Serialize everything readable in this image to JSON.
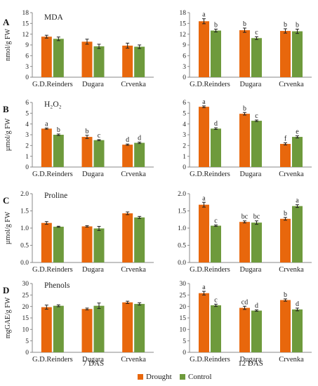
{
  "colors": {
    "drought": "#e8670c",
    "control": "#6e9a3c",
    "error": "#222222",
    "axis": "#8a8a8a"
  },
  "x_titles": [
    "7 DAS",
    "12 DAS"
  ],
  "legend": [
    {
      "label": "Drought",
      "color": "#e8670c"
    },
    {
      "label": "Control",
      "color": "#6e9a3c"
    }
  ],
  "chart_data": [
    {
      "type": "bar",
      "row_letter": "A",
      "title": "MDA",
      "ylabel": "nmol/g FW",
      "period": "7 DAS",
      "ylim": [
        0,
        18
      ],
      "yticks": [
        0,
        3,
        6,
        9,
        12,
        15,
        18
      ],
      "categories": [
        "G.D.Reinders",
        "Dugara",
        "Crvenka"
      ],
      "series": [
        {
          "name": "Drought",
          "values": [
            11.3,
            9.9,
            8.8
          ],
          "errors": [
            0.4,
            0.7,
            0.7
          ],
          "labels": [
            "",
            "",
            ""
          ]
        },
        {
          "name": "Control",
          "values": [
            10.7,
            8.6,
            8.5
          ],
          "errors": [
            0.5,
            0.6,
            0.5
          ],
          "labels": [
            "",
            "",
            ""
          ]
        }
      ]
    },
    {
      "type": "bar",
      "row_letter": "",
      "title": "",
      "ylabel": "",
      "period": "12 DAS",
      "ylim": [
        0,
        18
      ],
      "yticks": [
        0,
        3,
        6,
        9,
        12,
        15,
        18
      ],
      "categories": [
        "G.D.Reinders",
        "Dugara",
        "Crvenka"
      ],
      "series": [
        {
          "name": "Drought",
          "values": [
            15.6,
            13.1,
            12.9
          ],
          "errors": [
            0.7,
            0.6,
            0.6
          ],
          "labels": [
            "a",
            "b",
            "b"
          ]
        },
        {
          "name": "Control",
          "values": [
            13.0,
            10.9,
            12.8
          ],
          "errors": [
            0.4,
            0.4,
            0.6
          ],
          "labels": [
            "b",
            "c",
            "b"
          ]
        }
      ]
    },
    {
      "type": "bar",
      "row_letter": "B",
      "title": "H₂O₂",
      "ylabel": "µmol/g FW",
      "period": "7 DAS",
      "ylim": [
        0,
        6
      ],
      "yticks": [
        0,
        1,
        2,
        3,
        4,
        5,
        6
      ],
      "categories": [
        "G.D.Reinders",
        "Dugara",
        "Crvenka"
      ],
      "series": [
        {
          "name": "Drought",
          "values": [
            3.57,
            2.8,
            2.08
          ],
          "errors": [
            0.06,
            0.15,
            0.06
          ],
          "labels": [
            "a",
            "b",
            "d"
          ]
        },
        {
          "name": "Control",
          "values": [
            3.0,
            2.5,
            2.25
          ],
          "errors": [
            0.07,
            0.05,
            0.07
          ],
          "labels": [
            "b",
            "c",
            "d"
          ]
        }
      ]
    },
    {
      "type": "bar",
      "row_letter": "",
      "title": "",
      "ylabel": "",
      "period": "12 DAS",
      "ylim": [
        0,
        6
      ],
      "yticks": [
        0,
        1,
        2,
        3,
        4,
        5,
        6
      ],
      "categories": [
        "G.D.Reinders",
        "Dugara",
        "Crvenka"
      ],
      "series": [
        {
          "name": "Drought",
          "values": [
            5.6,
            4.95,
            2.15
          ],
          "errors": [
            0.08,
            0.12,
            0.1
          ],
          "labels": [
            "a",
            "b",
            "f"
          ]
        },
        {
          "name": "Control",
          "values": [
            3.57,
            4.3,
            2.8
          ],
          "errors": [
            0.08,
            0.07,
            0.1
          ],
          "labels": [
            "d",
            "c",
            "e"
          ]
        }
      ]
    },
    {
      "type": "bar",
      "row_letter": "C",
      "title": "Proline",
      "ylabel": "µmol/g FW",
      "period": "7 DAS",
      "ylim": [
        0,
        2.0
      ],
      "yticks": [
        "0.0",
        "0.5",
        "1.0",
        "1.5",
        "2.0"
      ],
      "categories": [
        "G.D.Reinders",
        "Dugara",
        "Crvenka"
      ],
      "series": [
        {
          "name": "Drought",
          "values": [
            1.15,
            1.05,
            1.43
          ],
          "errors": [
            0.04,
            0.02,
            0.04
          ],
          "labels": [
            "",
            "",
            ""
          ]
        },
        {
          "name": "Control",
          "values": [
            1.04,
            0.99,
            1.31
          ],
          "errors": [
            0.015,
            0.06,
            0.03
          ],
          "labels": [
            "",
            "",
            ""
          ]
        }
      ]
    },
    {
      "type": "bar",
      "row_letter": "",
      "title": "",
      "ylabel": "",
      "period": "12 DAS",
      "ylim": [
        0,
        2.0
      ],
      "yticks": [
        "0.0",
        "0.5",
        "1.0",
        "1.5",
        "2.0"
      ],
      "categories": [
        "G.D.Reinders",
        "Dugara",
        "Crvenka"
      ],
      "series": [
        {
          "name": "Drought",
          "values": [
            1.68,
            1.18,
            1.27
          ],
          "errors": [
            0.07,
            0.03,
            0.04
          ],
          "labels": [
            "a",
            "bc",
            "b"
          ]
        },
        {
          "name": "Control",
          "values": [
            1.07,
            1.16,
            1.64
          ],
          "errors": [
            0.02,
            0.05,
            0.04
          ],
          "labels": [
            "c",
            "bc",
            "a"
          ]
        }
      ]
    },
    {
      "type": "bar",
      "row_letter": "D",
      "title": "Phenols",
      "ylabel": "mgGAE/g FW",
      "period": "7 DAS",
      "ylim": [
        0,
        30
      ],
      "yticks": [
        0,
        5,
        10,
        15,
        20,
        25,
        30
      ],
      "categories": [
        "G.D.Reinders",
        "Dugara",
        "Crvenka"
      ],
      "series": [
        {
          "name": "Drought",
          "values": [
            19.7,
            18.9,
            21.8
          ],
          "errors": [
            0.9,
            0.4,
            0.5
          ],
          "labels": [
            "",
            "",
            ""
          ]
        },
        {
          "name": "Control",
          "values": [
            20.3,
            20.3,
            21.1
          ],
          "errors": [
            0.4,
            1.2,
            0.5
          ],
          "labels": [
            "",
            "",
            ""
          ]
        }
      ]
    },
    {
      "type": "bar",
      "row_letter": "",
      "title": "",
      "ylabel": "",
      "period": "12 DAS",
      "ylim": [
        0,
        30
      ],
      "yticks": [
        0,
        5,
        10,
        15,
        20,
        25,
        30
      ],
      "categories": [
        "G.D.Reinders",
        "Dugara",
        "Crvenka"
      ],
      "series": [
        {
          "name": "Drought",
          "values": [
            25.8,
            19.4,
            22.8
          ],
          "errors": [
            0.8,
            0.7,
            0.5
          ],
          "labels": [
            "a",
            "cd",
            "b"
          ]
        },
        {
          "name": "Control",
          "values": [
            20.5,
            18.2,
            18.7
          ],
          "errors": [
            0.5,
            0.3,
            0.6
          ],
          "labels": [
            "c",
            "d",
            "d"
          ]
        }
      ]
    }
  ]
}
